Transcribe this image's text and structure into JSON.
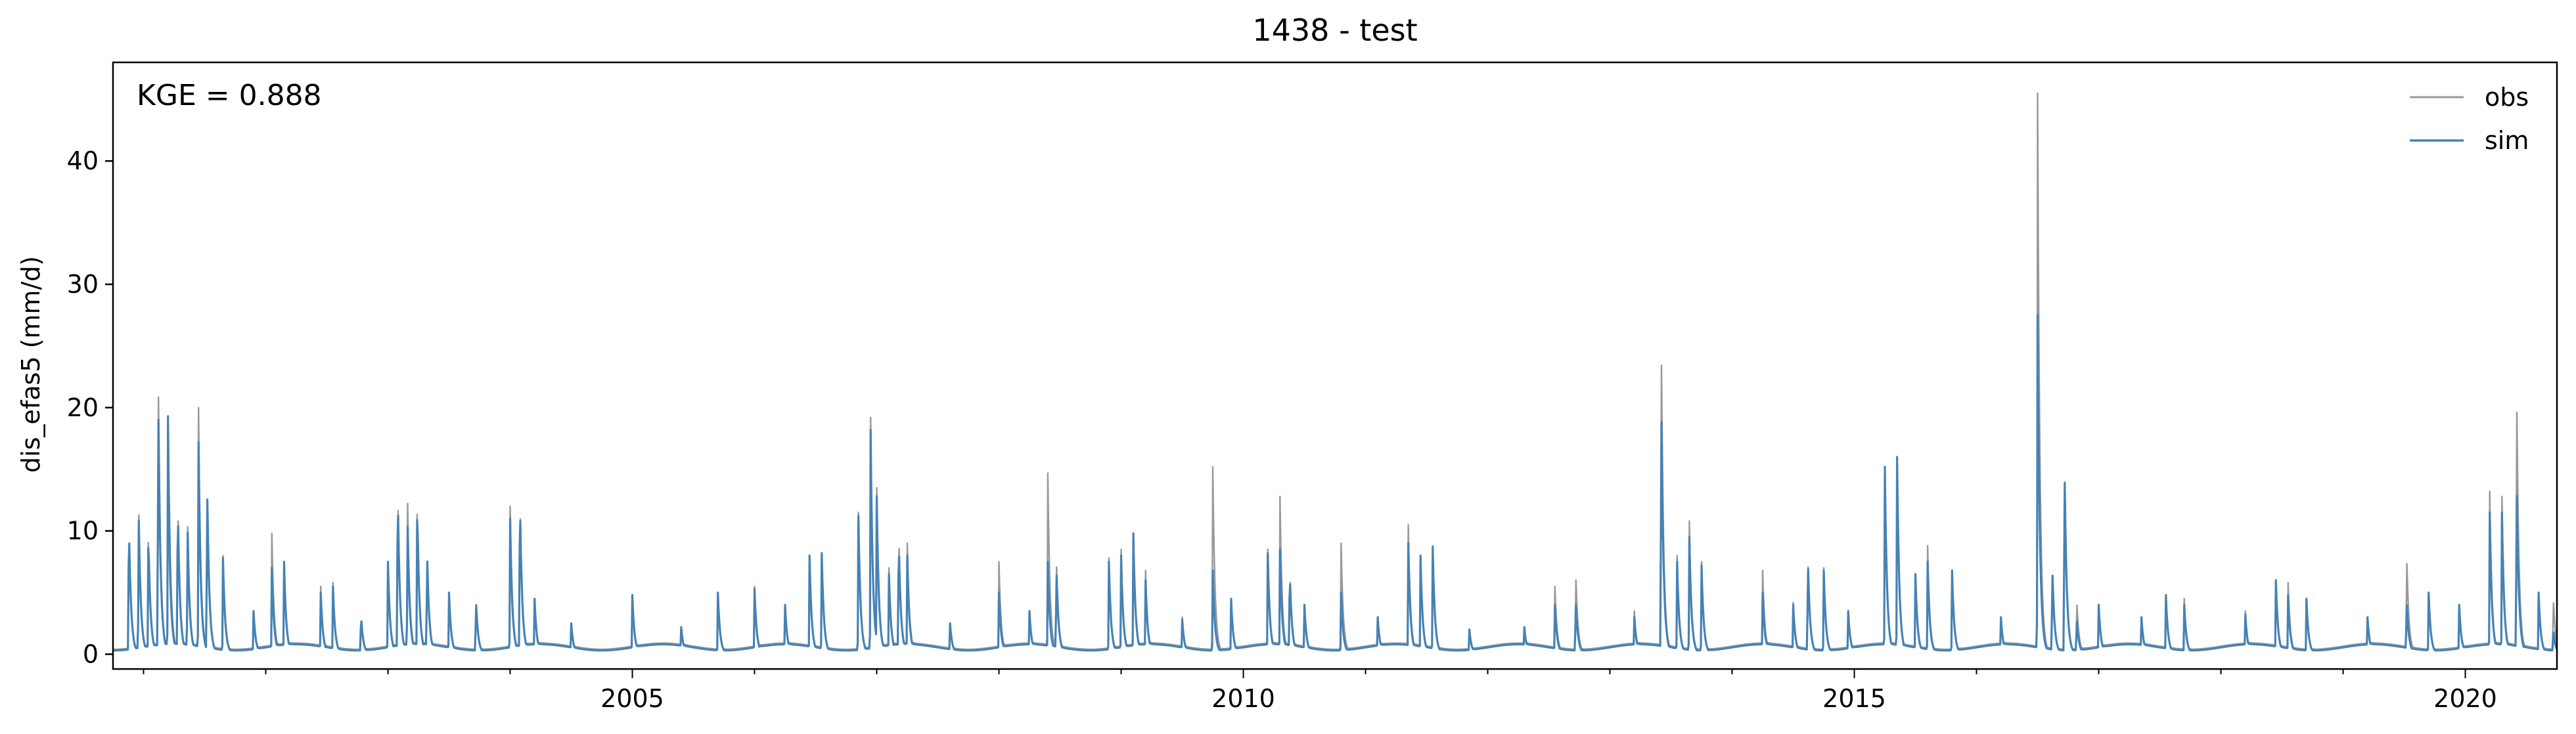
{
  "chart_data": {
    "type": "line",
    "title": "1438 - test",
    "xlabel": "",
    "ylabel": "dis_efas5 (mm/d)",
    "annotation": "KGE = 0.888",
    "xlim": [
      2000.75,
      2020.75
    ],
    "ylim": [
      -1.2,
      48
    ],
    "yticks": [
      0,
      10,
      20,
      30,
      40
    ],
    "ytick_labels": [
      "0",
      "10",
      "20",
      "30",
      "40"
    ],
    "xticks": [
      2005,
      2010,
      2015,
      2020
    ],
    "xtick_labels": [
      "2005",
      "2010",
      "2015",
      "2020"
    ],
    "grid": false,
    "legend_position": "top-right",
    "series": [
      {
        "name": "obs",
        "color": "#999999",
        "baseline": 0.4,
        "peaks": [
          [
            2000.88,
            10.8
          ],
          [
            2000.96,
            12.0
          ],
          [
            2001.04,
            10.0
          ],
          [
            2001.12,
            23.6
          ],
          [
            2001.2,
            14.5
          ],
          [
            2001.28,
            13.0
          ],
          [
            2001.36,
            11.0
          ],
          [
            2001.45,
            20.0
          ],
          [
            2001.52,
            14.0
          ],
          [
            2001.65,
            8.0
          ],
          [
            2001.9,
            3.5
          ],
          [
            2002.05,
            9.8
          ],
          [
            2002.15,
            7.5
          ],
          [
            2002.45,
            5.5
          ],
          [
            2002.55,
            5.8
          ],
          [
            2002.78,
            3.2
          ],
          [
            2003.0,
            7.5
          ],
          [
            2003.08,
            14.0
          ],
          [
            2003.16,
            13.0
          ],
          [
            2003.24,
            12.5
          ],
          [
            2003.32,
            8.5
          ],
          [
            2003.5,
            5.0
          ],
          [
            2003.72,
            4.5
          ],
          [
            2004.0,
            12.0
          ],
          [
            2004.08,
            13.2
          ],
          [
            2004.2,
            4.5
          ],
          [
            2004.5,
            2.5
          ],
          [
            2005.0,
            4.5
          ],
          [
            2005.4,
            2.2
          ],
          [
            2005.7,
            5.0
          ],
          [
            2006.0,
            5.5
          ],
          [
            2006.25,
            4.0
          ],
          [
            2006.45,
            8.0
          ],
          [
            2006.55,
            8.2
          ],
          [
            2006.85,
            11.5
          ],
          [
            2006.95,
            19.2
          ],
          [
            2007.0,
            13.5
          ],
          [
            2007.1,
            7.0
          ],
          [
            2007.18,
            10.3
          ],
          [
            2007.25,
            9.0
          ],
          [
            2007.6,
            2.5
          ],
          [
            2008.0,
            7.5
          ],
          [
            2008.25,
            3.5
          ],
          [
            2008.4,
            14.7
          ],
          [
            2008.47,
            8.0
          ],
          [
            2008.9,
            7.8
          ],
          [
            2009.0,
            8.5
          ],
          [
            2009.1,
            9.8
          ],
          [
            2009.2,
            6.8
          ],
          [
            2009.5,
            3.0
          ],
          [
            2009.75,
            15.2
          ],
          [
            2009.9,
            4.5
          ],
          [
            2010.2,
            8.5
          ],
          [
            2010.3,
            12.8
          ],
          [
            2010.38,
            7.0
          ],
          [
            2010.5,
            4.0
          ],
          [
            2010.8,
            9.0
          ],
          [
            2011.1,
            3.0
          ],
          [
            2011.35,
            10.5
          ],
          [
            2011.45,
            8.0
          ],
          [
            2011.55,
            8.8
          ],
          [
            2011.85,
            2.0
          ],
          [
            2012.3,
            2.2
          ],
          [
            2012.55,
            5.5
          ],
          [
            2012.72,
            6.8
          ],
          [
            2013.2,
            3.5
          ],
          [
            2013.42,
            26.5
          ],
          [
            2013.55,
            8.0
          ],
          [
            2013.65,
            10.8
          ],
          [
            2013.75,
            7.5
          ],
          [
            2014.25,
            6.8
          ],
          [
            2014.5,
            4.2
          ],
          [
            2014.62,
            8.0
          ],
          [
            2014.75,
            7.0
          ],
          [
            2014.95,
            3.5
          ],
          [
            2015.25,
            15.2
          ],
          [
            2015.35,
            16.0
          ],
          [
            2015.5,
            6.5
          ],
          [
            2015.6,
            8.8
          ],
          [
            2015.8,
            6.8
          ],
          [
            2016.2,
            3.0
          ],
          [
            2016.5,
            45.5
          ],
          [
            2016.62,
            7.0
          ],
          [
            2016.72,
            15.8
          ],
          [
            2016.82,
            4.5
          ],
          [
            2017.0,
            4.0
          ],
          [
            2017.35,
            3.0
          ],
          [
            2017.55,
            4.8
          ],
          [
            2017.7,
            4.5
          ],
          [
            2018.2,
            3.5
          ],
          [
            2018.45,
            6.0
          ],
          [
            2018.55,
            5.8
          ],
          [
            2018.7,
            4.5
          ],
          [
            2019.2,
            3.0
          ],
          [
            2019.52,
            8.3
          ],
          [
            2019.7,
            5.0
          ],
          [
            2019.95,
            4.0
          ],
          [
            2020.2,
            13.2
          ],
          [
            2020.3,
            12.8
          ],
          [
            2020.42,
            22.2
          ],
          [
            2020.6,
            5.0
          ],
          [
            2020.72,
            4.7
          ]
        ]
      },
      {
        "name": "sim",
        "color": "#4682b4",
        "baseline": 0.3,
        "peaks": [
          [
            2000.88,
            10.8
          ],
          [
            2000.96,
            11.5
          ],
          [
            2001.04,
            9.5
          ],
          [
            2001.12,
            21.5
          ],
          [
            2001.2,
            19.3
          ],
          [
            2001.28,
            12.5
          ],
          [
            2001.36,
            10.5
          ],
          [
            2001.45,
            17.2
          ],
          [
            2001.52,
            14.2
          ],
          [
            2001.65,
            7.8
          ],
          [
            2001.9,
            3.5
          ],
          [
            2002.05,
            7.0
          ],
          [
            2002.15,
            7.5
          ],
          [
            2002.45,
            5.0
          ],
          [
            2002.55,
            5.5
          ],
          [
            2002.78,
            3.2
          ],
          [
            2003.0,
            7.5
          ],
          [
            2003.08,
            13.5
          ],
          [
            2003.16,
            11.0
          ],
          [
            2003.24,
            12.0
          ],
          [
            2003.32,
            8.5
          ],
          [
            2003.5,
            5.0
          ],
          [
            2003.72,
            4.5
          ],
          [
            2004.0,
            11.0
          ],
          [
            2004.08,
            13.0
          ],
          [
            2004.2,
            4.5
          ],
          [
            2004.5,
            2.5
          ],
          [
            2005.0,
            4.8
          ],
          [
            2005.4,
            2.2
          ],
          [
            2005.7,
            5.0
          ],
          [
            2006.0,
            5.3
          ],
          [
            2006.25,
            4.0
          ],
          [
            2006.45,
            8.0
          ],
          [
            2006.55,
            8.2
          ],
          [
            2006.85,
            11.2
          ],
          [
            2006.95,
            18.2
          ],
          [
            2007.0,
            12.8
          ],
          [
            2007.1,
            6.5
          ],
          [
            2007.18,
            9.5
          ],
          [
            2007.25,
            8.0
          ],
          [
            2007.6,
            2.5
          ],
          [
            2008.0,
            5.0
          ],
          [
            2008.25,
            3.5
          ],
          [
            2008.4,
            7.5
          ],
          [
            2008.47,
            7.2
          ],
          [
            2008.9,
            7.5
          ],
          [
            2009.0,
            8.0
          ],
          [
            2009.1,
            9.8
          ],
          [
            2009.2,
            6.0
          ],
          [
            2009.5,
            2.8
          ],
          [
            2009.75,
            6.8
          ],
          [
            2009.9,
            4.5
          ],
          [
            2010.2,
            8.2
          ],
          [
            2010.3,
            8.5
          ],
          [
            2010.38,
            6.8
          ],
          [
            2010.5,
            4.0
          ],
          [
            2010.8,
            5.0
          ],
          [
            2011.1,
            3.0
          ],
          [
            2011.35,
            9.0
          ],
          [
            2011.45,
            8.0
          ],
          [
            2011.55,
            8.7
          ],
          [
            2011.85,
            2.0
          ],
          [
            2012.3,
            2.2
          ],
          [
            2012.55,
            4.0
          ],
          [
            2012.72,
            4.5
          ],
          [
            2013.2,
            3.0
          ],
          [
            2013.42,
            21.3
          ],
          [
            2013.55,
            7.5
          ],
          [
            2013.65,
            9.5
          ],
          [
            2013.75,
            7.2
          ],
          [
            2014.25,
            5.0
          ],
          [
            2014.5,
            4.0
          ],
          [
            2014.62,
            7.8
          ],
          [
            2014.75,
            6.8
          ],
          [
            2014.95,
            3.5
          ],
          [
            2015.25,
            15.2
          ],
          [
            2015.35,
            16.0
          ],
          [
            2015.5,
            6.5
          ],
          [
            2015.6,
            7.5
          ],
          [
            2015.8,
            6.8
          ],
          [
            2016.2,
            3.0
          ],
          [
            2016.5,
            27.5
          ],
          [
            2016.62,
            7.2
          ],
          [
            2016.72,
            15.7
          ],
          [
            2016.82,
            3.0
          ],
          [
            2017.0,
            4.0
          ],
          [
            2017.35,
            3.0
          ],
          [
            2017.55,
            4.8
          ],
          [
            2017.7,
            4.0
          ],
          [
            2018.2,
            3.2
          ],
          [
            2018.45,
            6.0
          ],
          [
            2018.55,
            4.8
          ],
          [
            2018.7,
            4.5
          ],
          [
            2019.2,
            3.0
          ],
          [
            2019.52,
            4.5
          ],
          [
            2019.7,
            5.0
          ],
          [
            2019.95,
            4.0
          ],
          [
            2020.2,
            11.5
          ],
          [
            2020.3,
            11.5
          ],
          [
            2020.42,
            14.5
          ],
          [
            2020.6,
            5.0
          ],
          [
            2020.72,
            2.0
          ]
        ]
      }
    ]
  }
}
